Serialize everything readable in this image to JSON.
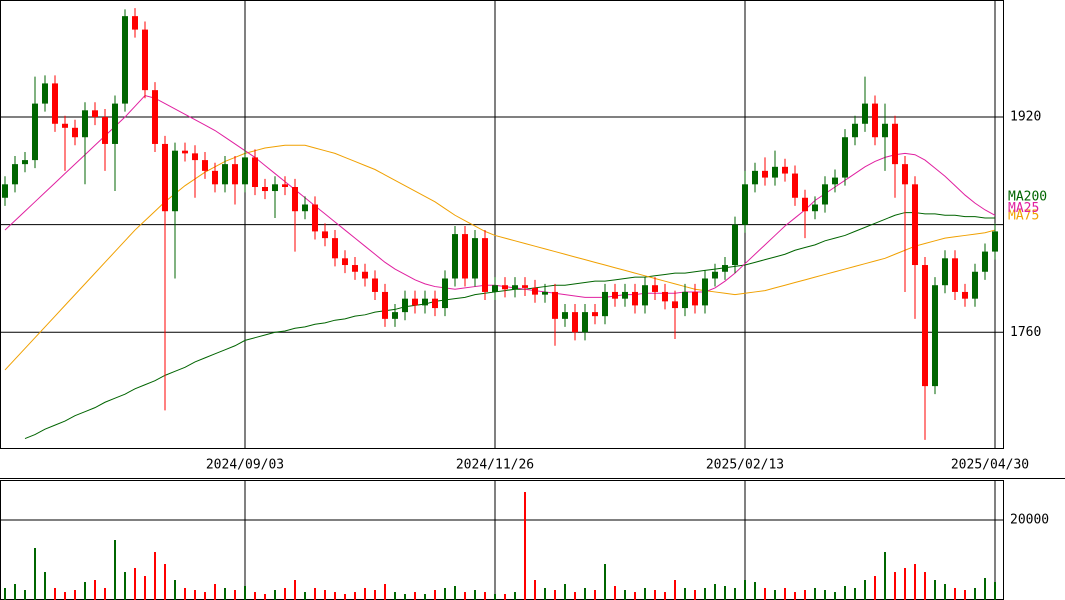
{
  "chart_data": [
    {
      "type": "candlestick",
      "up_color": "#006600",
      "down_color": "#ff0000",
      "ylim": [
        1674,
        2007
      ],
      "yticks": [
        1760,
        1920
      ],
      "grid_lines": [
        1760,
        1840,
        1920
      ],
      "xticks": [
        {
          "value": 24,
          "label": "2024/09/03"
        },
        {
          "value": 49,
          "label": "2024/11/26"
        },
        {
          "value": 74,
          "label": "2025/02/13"
        },
        {
          "value": 99,
          "label": "2025/04/30"
        }
      ],
      "open": [
        1860,
        1870,
        1885,
        1888,
        1930,
        1945,
        1915,
        1912,
        1905,
        1925,
        1920,
        1900,
        1930,
        1995,
        1985,
        1940,
        1900,
        1850,
        1895,
        1893,
        1888,
        1880,
        1870,
        1885,
        1870,
        1890,
        1868,
        1865,
        1870,
        1868,
        1850,
        1855,
        1835,
        1830,
        1815,
        1810,
        1805,
        1800,
        1790,
        1770,
        1775,
        1785,
        1780,
        1785,
        1778,
        1800,
        1833,
        1800,
        1830,
        1790,
        1795,
        1792,
        1795,
        1793,
        1788,
        1790,
        1770,
        1775,
        1760,
        1775,
        1772,
        1790,
        1785,
        1790,
        1780,
        1795,
        1790,
        1783,
        1778,
        1790,
        1780,
        1800,
        1805,
        1810,
        1840,
        1870,
        1880,
        1875,
        1883,
        1878,
        1860,
        1850,
        1855,
        1870,
        1875,
        1905,
        1915,
        1930,
        1905,
        1915,
        1885,
        1870,
        1810,
        1720,
        1795,
        1815,
        1790,
        1785,
        1805,
        1820
      ],
      "high": [
        1876,
        1891,
        1894,
        1950,
        1951,
        1951,
        1921,
        1918,
        1931,
        1931,
        1926,
        1936,
        2000,
        2001,
        1991,
        1946,
        1906,
        1901,
        1901,
        1899,
        1894,
        1886,
        1891,
        1891,
        1896,
        1896,
        1874,
        1876,
        1876,
        1874,
        1861,
        1861,
        1841,
        1836,
        1821,
        1816,
        1811,
        1806,
        1796,
        1781,
        1791,
        1791,
        1791,
        1791,
        1806,
        1839,
        1839,
        1836,
        1836,
        1801,
        1801,
        1801,
        1801,
        1799,
        1796,
        1796,
        1781,
        1781,
        1781,
        1781,
        1796,
        1796,
        1796,
        1796,
        1801,
        1801,
        1796,
        1791,
        1796,
        1796,
        1806,
        1811,
        1816,
        1846,
        1880,
        1886,
        1890,
        1895,
        1889,
        1884,
        1866,
        1861,
        1876,
        1881,
        1911,
        1921,
        1950,
        1936,
        1930,
        1921,
        1891,
        1876,
        1816,
        1801,
        1821,
        1821,
        1796,
        1811,
        1826,
        1841
      ],
      "low": [
        1854,
        1864,
        1879,
        1882,
        1924,
        1909,
        1880,
        1899,
        1870,
        1914,
        1880,
        1865,
        1924,
        1979,
        1934,
        1894,
        1702,
        1800,
        1887,
        1860,
        1874,
        1864,
        1864,
        1855,
        1864,
        1862,
        1859,
        1845,
        1862,
        1820,
        1844,
        1829,
        1824,
        1809,
        1804,
        1799,
        1794,
        1784,
        1764,
        1764,
        1769,
        1774,
        1774,
        1772,
        1772,
        1794,
        1794,
        1794,
        1784,
        1784,
        1786,
        1786,
        1787,
        1782,
        1782,
        1750,
        1764,
        1754,
        1754,
        1766,
        1766,
        1779,
        1779,
        1774,
        1774,
        1784,
        1777,
        1755,
        1772,
        1774,
        1774,
        1794,
        1799,
        1804,
        1834,
        1864,
        1869,
        1869,
        1872,
        1854,
        1830,
        1844,
        1849,
        1864,
        1869,
        1899,
        1909,
        1899,
        1880,
        1860,
        1790,
        1770,
        1680,
        1714,
        1789,
        1784,
        1779,
        1779,
        1799,
        1814
      ],
      "close": [
        1870,
        1885,
        1888,
        1930,
        1945,
        1915,
        1912,
        1905,
        1925,
        1920,
        1900,
        1930,
        1995,
        1985,
        1940,
        1900,
        1850,
        1895,
        1893,
        1888,
        1880,
        1870,
        1885,
        1870,
        1890,
        1868,
        1865,
        1870,
        1868,
        1850,
        1855,
        1835,
        1830,
        1815,
        1810,
        1805,
        1800,
        1790,
        1770,
        1775,
        1785,
        1780,
        1785,
        1778,
        1800,
        1833,
        1800,
        1830,
        1790,
        1795,
        1792,
        1795,
        1793,
        1788,
        1790,
        1770,
        1775,
        1760,
        1775,
        1772,
        1790,
        1785,
        1790,
        1780,
        1795,
        1790,
        1783,
        1778,
        1790,
        1780,
        1800,
        1805,
        1810,
        1840,
        1870,
        1880,
        1875,
        1883,
        1878,
        1860,
        1850,
        1855,
        1870,
        1875,
        1905,
        1915,
        1930,
        1905,
        1915,
        1885,
        1870,
        1810,
        1720,
        1795,
        1815,
        1790,
        1785,
        1805,
        1820,
        1835
      ],
      "series": [
        {
          "name": "MA200",
          "color": "#006400",
          "values": [
            null,
            null,
            1681,
            1684,
            1688,
            1691,
            1694,
            1698,
            1701,
            1704,
            1708,
            1711,
            1714,
            1718,
            1721,
            1724,
            1728,
            1731,
            1734,
            1738,
            1741,
            1744,
            1747,
            1750,
            1754,
            1756,
            1758,
            1760,
            1761,
            1763,
            1764,
            1766,
            1767,
            1769,
            1770,
            1772,
            1773,
            1775,
            1776,
            1777,
            1779,
            1780,
            1781,
            1783,
            1784,
            1785,
            1786,
            1788,
            1789,
            1790,
            1791,
            1792,
            1792,
            1793,
            1794,
            1795,
            1795,
            1796,
            1797,
            1798,
            1798,
            1799,
            1800,
            1801,
            1801,
            1802,
            1803,
            1804,
            1804,
            1805,
            1806,
            1807,
            1808,
            1809,
            1810,
            1812,
            1814,
            1816,
            1818,
            1821,
            1823,
            1825,
            1828,
            1830,
            1832,
            1835,
            1838,
            1841,
            1844,
            1847,
            1849,
            1849,
            1848,
            1848,
            1847,
            1847,
            1846,
            1846,
            1845,
            1845
          ]
        },
        {
          "name": "MA75",
          "color": "#f0a000",
          "values": [
            1732,
            1740,
            1748,
            1756,
            1764,
            1772,
            1780,
            1788,
            1796,
            1804,
            1812,
            1820,
            1828,
            1836,
            1843,
            1850,
            1857,
            1863,
            1869,
            1874,
            1879,
            1883,
            1887,
            1890,
            1893,
            1895,
            1897,
            1898,
            1899,
            1899,
            1899,
            1897,
            1895,
            1893,
            1890,
            1887,
            1884,
            1881,
            1877,
            1873,
            1869,
            1865,
            1861,
            1857,
            1852,
            1847,
            1843,
            1839,
            1835,
            1832,
            1830,
            1828,
            1826,
            1824,
            1822,
            1820,
            1818,
            1816,
            1814,
            1812,
            1810,
            1808,
            1806,
            1804,
            1802,
            1800,
            1798,
            1796,
            1794,
            1792,
            1791,
            1790,
            1789,
            1788,
            1789,
            1790,
            1791,
            1793,
            1795,
            1797,
            1799,
            1801,
            1803,
            1805,
            1807,
            1809,
            1811,
            1813,
            1815,
            1818,
            1821,
            1824,
            1826,
            1828,
            1830,
            1831,
            1832,
            1833,
            1834,
            1836
          ]
        },
        {
          "name": "MA25",
          "color": "#e020a0",
          "values": [
            1836,
            1843,
            1850,
            1857,
            1864,
            1871,
            1878,
            1885,
            1892,
            1899,
            1906,
            1913,
            1920,
            1928,
            1936,
            1934,
            1930,
            1926,
            1922,
            1918,
            1914,
            1910,
            1905,
            1900,
            1895,
            1890,
            1884,
            1878,
            1872,
            1866,
            1860,
            1854,
            1848,
            1842,
            1836,
            1830,
            1824,
            1818,
            1812,
            1807,
            1803,
            1799,
            1796,
            1794,
            1793,
            1792,
            1793,
            1794,
            1795,
            1795,
            1794,
            1793,
            1792,
            1791,
            1790,
            1789,
            1788,
            1787,
            1786,
            1786,
            1786,
            1787,
            1788,
            1788,
            1789,
            1789,
            1789,
            1789,
            1790,
            1790,
            1790,
            1793,
            1798,
            1804,
            1811,
            1818,
            1825,
            1832,
            1839,
            1845,
            1851,
            1858,
            1863,
            1868,
            1873,
            1878,
            1883,
            1887,
            1890,
            1892,
            1893,
            1892,
            1888,
            1882,
            1876,
            1869,
            1862,
            1856,
            1851,
            1847
          ]
        }
      ]
    },
    {
      "type": "bar",
      "ylim": [
        0,
        30000
      ],
      "yticks": [
        20000
      ],
      "values": [
        3000,
        4000,
        2500,
        13000,
        7000,
        3000,
        2000,
        2500,
        4500,
        5000,
        3000,
        15000,
        7000,
        8000,
        6000,
        12000,
        9000,
        5000,
        3000,
        2500,
        2000,
        4000,
        3000,
        2500,
        3500,
        2000,
        1500,
        2500,
        3000,
        5000,
        2000,
        3000,
        2500,
        2000,
        1500,
        2000,
        3000,
        2500,
        4000,
        2000,
        1500,
        2000,
        1500,
        2500,
        3000,
        3500,
        2000,
        2500,
        2000,
        1500,
        1500,
        2000,
        27000,
        5000,
        3000,
        2500,
        4000,
        2000,
        3000,
        2500,
        9000,
        3500,
        2500,
        2000,
        3000,
        2500,
        2000,
        5000,
        3000,
        2500,
        3000,
        4000,
        3500,
        3000,
        5000,
        4500,
        3000,
        2500,
        3000,
        2000,
        2500,
        3000,
        2500,
        2000,
        3500,
        3000,
        5000,
        6000,
        12000,
        7000,
        8000,
        9000,
        7000,
        5000,
        4000,
        3000,
        2500,
        3000,
        5500,
        4500
      ]
    }
  ]
}
